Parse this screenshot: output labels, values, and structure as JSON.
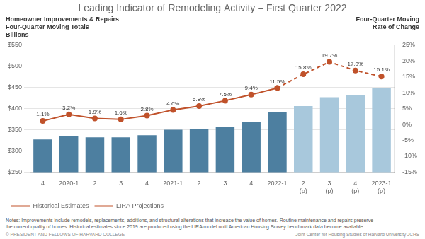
{
  "chart_data": {
    "type": "bar",
    "title": "Leading Indicator of Remodeling Activity – First Quarter 2022",
    "ylabel": [
      "Homeowner Improvements & Repairs",
      "Four-Quarter Moving Totals",
      "Billions"
    ],
    "y2label": [
      "Four-Quarter Moving",
      "Rate of Change"
    ],
    "annotations": [
      "Notes: Improvements include remodels, replacements, additions, and structural alterations that increase the value of homes. Routine maintenance and repairs preserve\nthe current quality of homes. Historical estimates since 2019 are produced using the LIRA model until American Housing Survey benchmark data become available.",
      "© PRESIDENT AND FELLOWS OF HARVARD COLLEGE",
      "Joint Center for Housing Studies of Harvard University   JCHS"
    ],
    "categories": [
      "4",
      "2020-1",
      "2",
      "3",
      "4",
      "2021-1",
      "2",
      "3",
      "4",
      "2022-1",
      "2\n(p)",
      "3\n(p)",
      "4\n(p)",
      "2023-1\n(p)"
    ],
    "series": [
      {
        "type": "bar",
        "colors": [
          "#4d7fa0",
          "#4d7fa0",
          "#4d7fa0",
          "#4d7fa0",
          "#4d7fa0",
          "#4d7fa0",
          "#4d7fa0",
          "#4d7fa0",
          "#4d7fa0",
          "#4d7fa0",
          "#a8c8dc",
          "#a8c8dc",
          "#a8c8dc",
          "#a8c8dc"
        ],
        "values": [
          327,
          335,
          332,
          332,
          337,
          350,
          351,
          357,
          369,
          391,
          406,
          427,
          431,
          449
        ],
        "data_labels": true
      },
      {
        "name": "Historical Estimates",
        "type": "line",
        "axis": "y2",
        "color": "#c0522b",
        "marker": "circle",
        "line_style": "solid",
        "values": [
          1.1,
          3.2,
          1.9,
          1.6,
          2.8,
          4.6,
          5.8,
          7.5,
          9.4,
          11.5,
          null,
          null,
          null,
          null
        ],
        "data_labels": true,
        "value_labels": [
          "1.1%",
          "3.2%",
          "1.9%",
          "1.6%",
          "2.8%",
          "4.6%",
          "5.8%",
          "7.5%",
          "9.4%",
          "11.5%",
          null,
          null,
          null,
          null
        ]
      },
      {
        "name": "LIRA Projections",
        "type": "line",
        "axis": "y2",
        "color": "#c0522b",
        "marker": "circle",
        "line_style": "dashed",
        "values": [
          null,
          null,
          null,
          null,
          null,
          null,
          null,
          null,
          null,
          11.5,
          15.8,
          19.7,
          17.0,
          15.1
        ],
        "data_labels": true,
        "value_labels": [
          null,
          null,
          null,
          null,
          null,
          null,
          null,
          null,
          null,
          null,
          "15.8%",
          "19.7%",
          "17.0%",
          "15.1%"
        ]
      }
    ],
    "ylim": [
      250,
      550
    ],
    "yticks": [
      {
        "value": 250,
        "label": "$250"
      },
      {
        "value": 300,
        "label": "$300"
      },
      {
        "value": 350,
        "label": "$350"
      },
      {
        "value": 400,
        "label": "$400"
      },
      {
        "value": 450,
        "label": "$450"
      },
      {
        "value": 500,
        "label": "$500"
      },
      {
        "value": 550,
        "label": "$550"
      }
    ],
    "y2lim": [
      -15,
      25
    ],
    "y2ticks": [
      {
        "value": -15,
        "label": "-15%"
      },
      {
        "value": -10,
        "label": "-10%"
      },
      {
        "value": -5,
        "label": "-5%"
      },
      {
        "value": 0,
        "label": "0%"
      },
      {
        "value": 5,
        "label": "5%"
      },
      {
        "value": 10,
        "label": "10%"
      },
      {
        "value": 15,
        "label": "15%"
      },
      {
        "value": 20,
        "label": "20%"
      },
      {
        "value": 25,
        "label": "25%"
      }
    ],
    "grid": true,
    "legend": "bottom"
  }
}
